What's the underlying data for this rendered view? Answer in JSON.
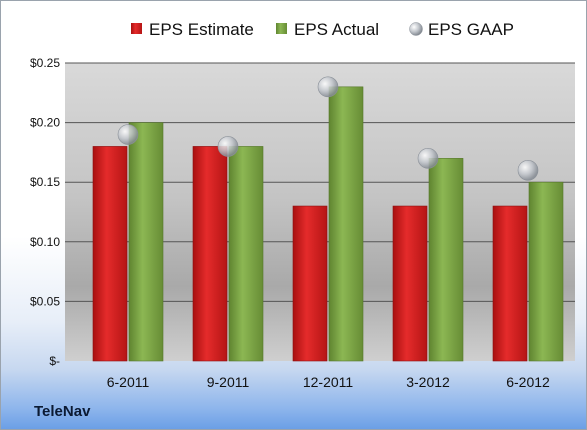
{
  "chart_data": {
    "type": "bar",
    "categories": [
      "6-2011",
      "9-2011",
      "12-2011",
      "3-2012",
      "6-2012"
    ],
    "series": [
      {
        "name": "EPS Estimate",
        "values": [
          0.18,
          0.18,
          0.13,
          0.13,
          0.13
        ],
        "color": "#d81e1e",
        "kind": "bar"
      },
      {
        "name": "EPS Actual",
        "values": [
          0.2,
          0.18,
          0.23,
          0.17,
          0.15
        ],
        "color": "#7aa342",
        "kind": "bar"
      },
      {
        "name": "EPS GAAP",
        "values": [
          0.19,
          0.18,
          0.23,
          0.17,
          0.16
        ],
        "color": "#b9bec6",
        "kind": "marker"
      }
    ],
    "ylim": [
      0,
      0.25
    ],
    "yticks": [
      0,
      0.05,
      0.1,
      0.15,
      0.2,
      0.25
    ],
    "ytick_labels": [
      "$-",
      "$0.05",
      "$0.10",
      "$0.15",
      "$0.20",
      "$0.25"
    ],
    "grid": true,
    "legend_position": "top"
  },
  "company_label": "TeleNav"
}
